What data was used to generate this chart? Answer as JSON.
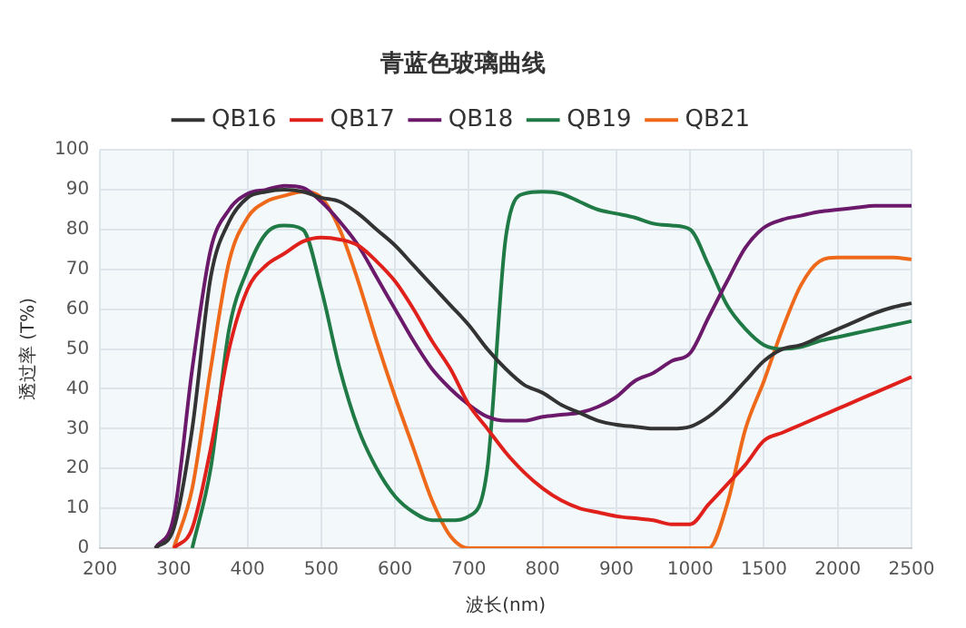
{
  "chart_data": {
    "type": "line",
    "title": "青蓝色玻璃曲线",
    "xlabel": "波长(nm)",
    "ylabel": "透过率 (T%)",
    "categories": [
      "200",
      null,
      null,
      null,
      "300",
      null,
      null,
      null,
      "400",
      null,
      null,
      null,
      "500",
      null,
      null,
      null,
      "600",
      null,
      null,
      null,
      "700",
      null,
      null,
      null,
      "800",
      null,
      null,
      null,
      "900",
      null,
      null,
      null,
      "1000",
      null,
      null,
      null,
      "1500",
      null,
      null,
      null,
      "2000",
      null,
      null,
      null,
      "2500"
    ],
    "ylim": [
      0,
      100
    ],
    "yticks": [
      0,
      10,
      20,
      30,
      40,
      50,
      60,
      70,
      80,
      90,
      100
    ],
    "grid": true,
    "legend": "top",
    "marker": "none",
    "line_style": "solid",
    "series": [
      {
        "name": "QB16",
        "color": "#333333",
        "values": [
          null,
          null,
          null,
          0,
          5,
          30,
          68,
          82,
          88,
          89.5,
          90,
          89.5,
          88,
          87,
          84,
          80,
          76,
          71,
          66,
          61,
          56,
          50,
          45,
          41,
          39,
          36,
          34,
          32,
          31,
          30.5,
          30,
          30,
          30.5,
          33,
          37,
          42,
          47,
          50,
          51,
          53,
          55,
          57,
          59,
          60.5,
          61.5
        ]
      },
      {
        "name": "QB17",
        "color": "#e0201b",
        "values": [
          null,
          null,
          null,
          null,
          0,
          5,
          25,
          50,
          65,
          71,
          74,
          77,
          78,
          77.5,
          76,
          72,
          67,
          60,
          52,
          45,
          36,
          30,
          24,
          19,
          15,
          12,
          10,
          9,
          8,
          7.5,
          7,
          6,
          6,
          11,
          16,
          21,
          27,
          29,
          31,
          33,
          35,
          37,
          39,
          41,
          43
        ]
      },
      {
        "name": "QB18",
        "color": "#6b1a6b",
        "values": [
          null,
          null,
          null,
          0,
          8,
          45,
          75,
          85,
          89,
          90,
          91,
          90.5,
          87,
          82,
          76,
          68,
          60,
          52,
          45,
          40,
          36,
          33,
          32,
          32,
          33,
          33.5,
          34,
          35.5,
          38,
          42,
          44,
          47,
          49,
          58,
          67,
          75.5,
          80.5,
          82.5,
          83.5,
          84.5,
          85,
          85.5,
          86,
          86,
          86
        ]
      },
      {
        "name": "QB19",
        "color": "#1f7a45",
        "values": [
          null,
          null,
          null,
          null,
          null,
          0,
          20,
          55,
          70,
          79,
          81,
          80,
          65,
          45,
          30,
          20,
          13,
          9,
          7,
          7,
          8,
          20,
          78,
          89,
          89.5,
          89,
          87,
          85,
          84,
          83,
          81.5,
          81,
          80,
          71,
          61,
          55,
          51,
          50,
          50.5,
          52,
          53,
          54,
          55,
          56,
          57
        ]
      },
      {
        "name": "QB21",
        "color": "#ee6a1a",
        "values": [
          null,
          null,
          null,
          null,
          0,
          15,
          45,
          72,
          83,
          87,
          88.5,
          89.5,
          88,
          80,
          67,
          52,
          38,
          25,
          12,
          3,
          0,
          0,
          0,
          0,
          0,
          0,
          0,
          0,
          0,
          0,
          0,
          0,
          0,
          0,
          11,
          30,
          42,
          55,
          66,
          72,
          73,
          73,
          73,
          73,
          72.5
        ]
      }
    ]
  }
}
